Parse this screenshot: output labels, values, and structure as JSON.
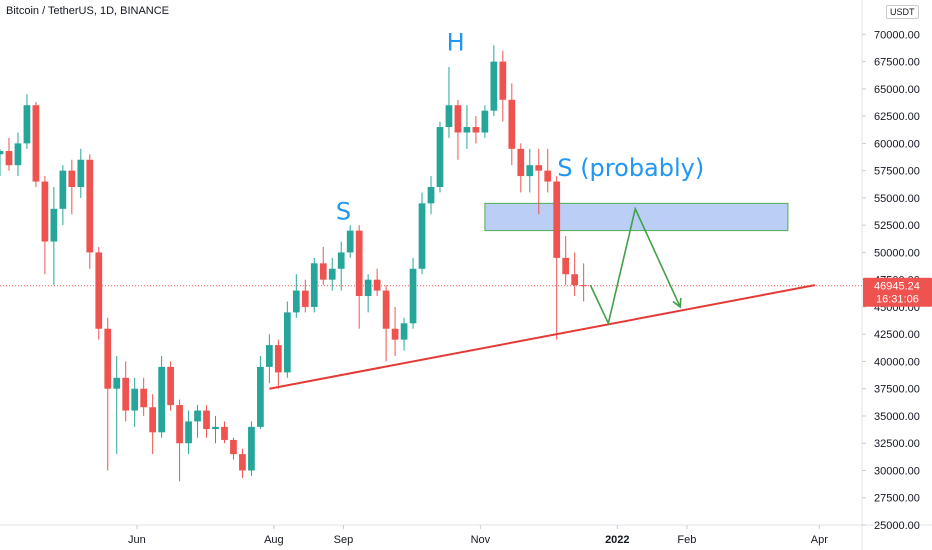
{
  "header": {
    "title": "Bitcoin / TetherUS, 1D, BINANCE",
    "currency": "USDT"
  },
  "chart_data": {
    "type": "candlestick",
    "x_range": [
      "2021-04-01",
      "2022-04-20"
    ],
    "ylim": [
      25000,
      71500
    ],
    "y_ticks": [
      25000,
      27500,
      30000,
      32500,
      35000,
      37500,
      40000,
      42500,
      45000,
      47500,
      50000,
      52500,
      55000,
      57500,
      60000,
      62500,
      65000,
      67500,
      70000
    ],
    "y_tick_labels": [
      "25000.00",
      "27500.00",
      "30000.00",
      "32500.00",
      "35000.00",
      "37500.00",
      "40000.00",
      "42500.00",
      "45000.00",
      "47500.00",
      "50000.00",
      "52500.00",
      "55000.00",
      "57500.00",
      "60000.00",
      "62500.00",
      "65000.00",
      "67500.00",
      "70000.00"
    ],
    "x_ticks": [
      {
        "label": "Jun",
        "date": "2021-06-01",
        "bold": false
      },
      {
        "label": "Aug",
        "date": "2021-08-01",
        "bold": false
      },
      {
        "label": "Sep",
        "date": "2021-09-01",
        "bold": false
      },
      {
        "label": "Nov",
        "date": "2021-11-01",
        "bold": false
      },
      {
        "label": "2022",
        "date": "2022-01-01",
        "bold": true
      },
      {
        "label": "Feb",
        "date": "2022-02-01",
        "bold": false
      },
      {
        "label": "Apr",
        "date": "2022-04-01",
        "bold": false
      }
    ],
    "up_color": "#26a69a",
    "down_color": "#ef5350",
    "candles": [
      [
        "2021-04-01",
        59000,
        59500,
        57000,
        59300
      ],
      [
        "2021-04-05",
        59300,
        60500,
        57500,
        58000
      ],
      [
        "2021-04-09",
        58000,
        61000,
        57000,
        60000
      ],
      [
        "2021-04-13",
        60000,
        64500,
        59500,
        63500
      ],
      [
        "2021-04-17",
        63500,
        63800,
        56000,
        56500
      ],
      [
        "2021-04-21",
        56500,
        57000,
        48000,
        51000
      ],
      [
        "2021-04-25",
        51000,
        56000,
        47000,
        54000
      ],
      [
        "2021-04-29",
        54000,
        58000,
        52500,
        57500
      ],
      [
        "2021-05-03",
        57500,
        58500,
        53500,
        56000
      ],
      [
        "2021-05-07",
        56000,
        59500,
        55000,
        58500
      ],
      [
        "2021-05-11",
        58500,
        59000,
        48500,
        50000
      ],
      [
        "2021-05-15",
        50000,
        50500,
        42000,
        43000
      ],
      [
        "2021-05-19",
        43000,
        44000,
        30000,
        37500
      ],
      [
        "2021-05-23",
        37500,
        40500,
        31500,
        38500
      ],
      [
        "2021-05-27",
        38500,
        40000,
        34500,
        35500
      ],
      [
        "2021-05-31",
        35500,
        38500,
        34000,
        37500
      ],
      [
        "2021-06-04",
        37500,
        38500,
        35000,
        35800
      ],
      [
        "2021-06-08",
        35800,
        37000,
        31500,
        33500
      ],
      [
        "2021-06-12",
        33500,
        40500,
        33000,
        39500
      ],
      [
        "2021-06-16",
        39500,
        40000,
        35500,
        36000
      ],
      [
        "2021-06-20",
        36000,
        36500,
        29000,
        32500
      ],
      [
        "2021-06-24",
        32500,
        35500,
        31500,
        34500
      ],
      [
        "2021-06-28",
        34500,
        36000,
        33000,
        35500
      ],
      [
        "2021-07-02",
        35500,
        36000,
        33000,
        33800
      ],
      [
        "2021-07-06",
        33800,
        35000,
        32500,
        34000
      ],
      [
        "2021-07-10",
        34000,
        34500,
        32500,
        32800
      ],
      [
        "2021-07-14",
        32800,
        33000,
        31000,
        31500
      ],
      [
        "2021-07-18",
        31500,
        32000,
        29300,
        30000
      ],
      [
        "2021-07-22",
        30000,
        34500,
        29500,
        34000
      ],
      [
        "2021-07-26",
        34000,
        40500,
        33800,
        39500
      ],
      [
        "2021-07-30",
        39500,
        42500,
        38000,
        41500
      ],
      [
        "2021-08-03",
        41500,
        42000,
        37500,
        39000
      ],
      [
        "2021-08-07",
        39000,
        45500,
        38500,
        44500
      ],
      [
        "2021-08-11",
        44500,
        48000,
        44000,
        46500
      ],
      [
        "2021-08-15",
        46500,
        47500,
        44500,
        45000
      ],
      [
        "2021-08-19",
        45000,
        49500,
        44500,
        49000
      ],
      [
        "2021-08-23",
        49000,
        50500,
        47000,
        47500
      ],
      [
        "2021-08-27",
        47500,
        49500,
        46500,
        48500
      ],
      [
        "2021-08-31",
        48500,
        51000,
        46500,
        50000
      ],
      [
        "2021-09-04",
        50000,
        52500,
        49500,
        52000
      ],
      [
        "2021-09-08",
        52000,
        52500,
        43000,
        46000
      ],
      [
        "2021-09-12",
        46000,
        48000,
        44500,
        47500
      ],
      [
        "2021-09-16",
        47500,
        48500,
        46000,
        46500
      ],
      [
        "2021-09-20",
        46500,
        47000,
        40000,
        43000
      ],
      [
        "2021-09-24",
        43000,
        45000,
        40500,
        42000
      ],
      [
        "2021-09-28",
        42000,
        44000,
        41000,
        43500
      ],
      [
        "2021-10-02",
        43500,
        49500,
        43000,
        48500
      ],
      [
        "2021-10-06",
        48500,
        55500,
        48000,
        54500
      ],
      [
        "2021-10-10",
        54500,
        57000,
        53500,
        56000
      ],
      [
        "2021-10-14",
        56000,
        62000,
        55500,
        61500
      ],
      [
        "2021-10-18",
        61500,
        67000,
        60500,
        63500
      ],
      [
        "2021-10-22",
        63500,
        64000,
        58500,
        61000
      ],
      [
        "2021-10-26",
        61000,
        63500,
        59500,
        61500
      ],
      [
        "2021-10-30",
        61500,
        62500,
        60000,
        61000
      ],
      [
        "2021-11-03",
        61000,
        63500,
        60500,
        63000
      ],
      [
        "2021-11-07",
        63000,
        69000,
        62500,
        67500
      ],
      [
        "2021-11-11",
        67500,
        68500,
        62000,
        64000
      ],
      [
        "2021-11-15",
        64000,
        65500,
        58000,
        59500
      ],
      [
        "2021-11-19",
        59500,
        60000,
        55500,
        57000
      ],
      [
        "2021-11-23",
        57000,
        59500,
        55500,
        58000
      ],
      [
        "2021-11-27",
        58000,
        59500,
        53500,
        57500
      ],
      [
        "2021-12-01",
        57500,
        59500,
        55500,
        56500
      ],
      [
        "2021-12-05",
        56500,
        57000,
        42000,
        49500
      ],
      [
        "2021-12-09",
        49500,
        51500,
        47000,
        48000
      ],
      [
        "2021-12-13",
        48000,
        50000,
        46000,
        47000
      ],
      [
        "2021-12-17",
        47000,
        49000,
        45500,
        46945
      ]
    ],
    "current_price": {
      "value": 46945.24,
      "label": "46945.24",
      "countdown": "16:31:06",
      "color": "#ef5350"
    },
    "overlays": {
      "trendline": {
        "color": "#e53935",
        "from": {
          "date": "2021-07-30",
          "price": 37500
        },
        "to": {
          "date": "2022-03-30",
          "price": 47000
        }
      },
      "resistance_zone": {
        "fill": "#aec6f4",
        "stroke": "#4caf50",
        "x0": "2021-11-03",
        "x1": "2022-03-18",
        "y0": 52000,
        "y1": 54500
      },
      "projection_path": {
        "color": "#43a047",
        "points": [
          {
            "date": "2021-12-20",
            "price": 47000
          },
          {
            "date": "2021-12-28",
            "price": 43500
          },
          {
            "date": "2022-01-09",
            "price": 54000
          },
          {
            "date": "2022-01-29",
            "price": 45000
          }
        ]
      }
    },
    "annotations": [
      {
        "text": "H",
        "date": "2021-10-21",
        "price": 68500
      },
      {
        "text": "S",
        "date": "2021-09-01",
        "price": 53000
      },
      {
        "text": "S (probably)",
        "date": "2022-01-07",
        "price": 57000
      }
    ]
  }
}
